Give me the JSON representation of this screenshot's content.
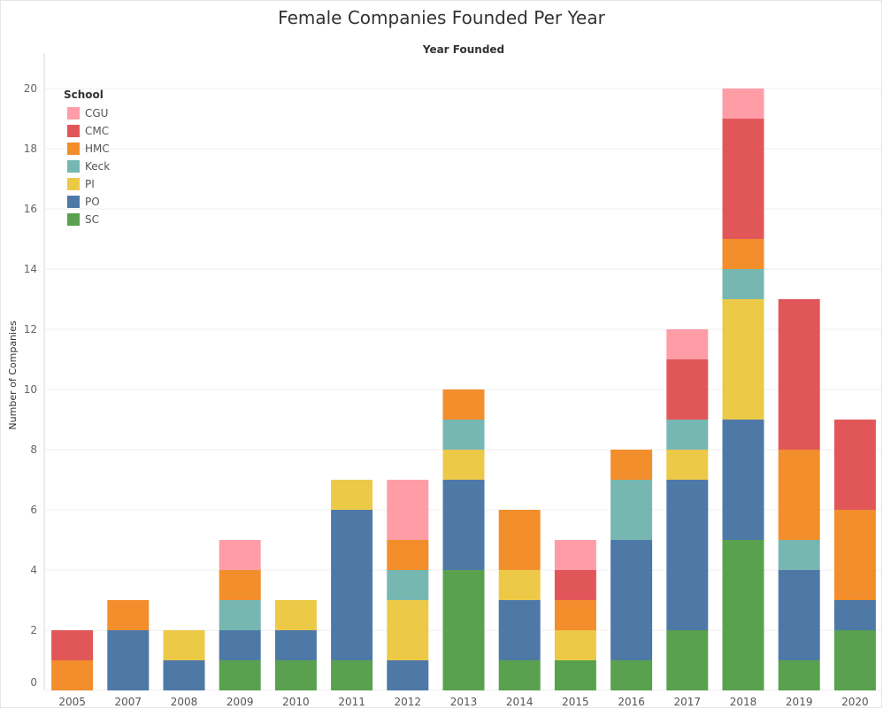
{
  "chart_data": {
    "type": "bar",
    "stacked": true,
    "title": "Female Companies Founded Per Year",
    "subtitle": "Year Founded",
    "ylabel": "Number of Companies",
    "ylim": [
      0,
      20
    ],
    "yticks": [
      0,
      2,
      4,
      6,
      8,
      10,
      12,
      14,
      16,
      18,
      20
    ],
    "grid": true,
    "legend_title": "School",
    "legend_position": "top-left",
    "categories": [
      "2005",
      "2007",
      "2008",
      "2009",
      "2010",
      "2011",
      "2012",
      "2013",
      "2014",
      "2015",
      "2016",
      "2017",
      "2018",
      "2019",
      "2020"
    ],
    "series": [
      {
        "name": "SC",
        "color": "#59A14F",
        "values": [
          0,
          0,
          0,
          1,
          1,
          1,
          0,
          4,
          1,
          1,
          1,
          2,
          5,
          1,
          2
        ]
      },
      {
        "name": "PO",
        "color": "#4E79A7",
        "values": [
          0,
          2,
          1,
          1,
          1,
          5,
          1,
          3,
          2,
          0,
          4,
          5,
          4,
          3,
          1
        ]
      },
      {
        "name": "PI",
        "color": "#EDC948",
        "values": [
          0,
          0,
          1,
          0,
          1,
          1,
          2,
          1,
          1,
          1,
          0,
          1,
          4,
          0,
          0
        ]
      },
      {
        "name": "Keck",
        "color": "#76B7B2",
        "values": [
          0,
          0,
          0,
          1,
          0,
          0,
          1,
          1,
          0,
          0,
          2,
          1,
          1,
          1,
          0
        ]
      },
      {
        "name": "HMC",
        "color": "#F28E2B",
        "values": [
          1,
          1,
          0,
          1,
          0,
          0,
          1,
          1,
          2,
          1,
          1,
          0,
          1,
          3,
          3
        ]
      },
      {
        "name": "CMC",
        "color": "#E15759",
        "values": [
          1,
          0,
          0,
          0,
          0,
          0,
          0,
          0,
          0,
          1,
          0,
          2,
          4,
          5,
          3
        ]
      },
      {
        "name": "CGU",
        "color": "#FF9DA7",
        "values": [
          0,
          0,
          0,
          1,
          0,
          0,
          2,
          0,
          0,
          1,
          0,
          1,
          1,
          0,
          0
        ]
      }
    ],
    "legend_order": [
      "CGU",
      "CMC",
      "HMC",
      "Keck",
      "PI",
      "PO",
      "SC"
    ]
  }
}
